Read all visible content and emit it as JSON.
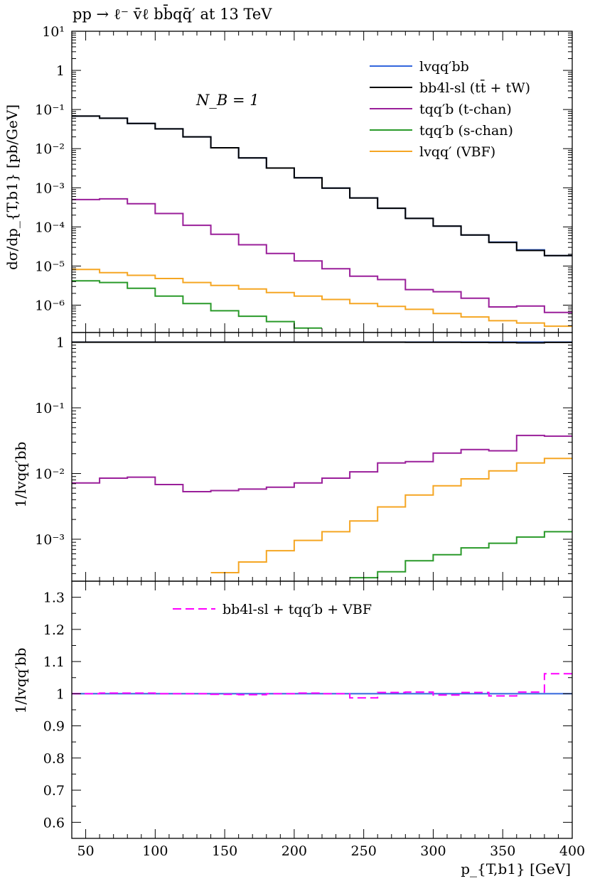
{
  "chart_data": [
    {
      "type": "line",
      "title": "pp → ℓ⁻ v̄ℓ bb̄qq̄′ at 13 TeV",
      "ylabel": "dσ/dp_{T,b1} [pb/GeV]",
      "yscale": "log",
      "ylim": [
        2e-07,
        10
      ],
      "xlim": [
        40,
        400
      ],
      "ytick_labels": [
        "10¹",
        "1",
        "10⁻¹",
        "10⁻²",
        "10⁻³",
        "10⁻⁴",
        "10⁻⁵",
        "10⁻⁶"
      ],
      "annotation": "N_B = 1",
      "legend_position": "top-right",
      "x_edges": [
        40,
        60,
        80,
        100,
        120,
        140,
        160,
        180,
        200,
        220,
        240,
        260,
        280,
        300,
        320,
        340,
        360,
        380,
        400
      ],
      "series": [
        {
          "name": "lvqq′bb",
          "color": "#3366dd",
          "values": [
            0.068,
            0.06,
            0.044,
            0.032,
            0.02,
            0.0105,
            0.0058,
            0.0032,
            0.0018,
            0.00098,
            0.00055,
            0.0003,
            0.000165,
            0.000105,
            6.2e-05,
            4.1e-05,
            2.6e-05,
            1.85e-05
          ]
        },
        {
          "name": "bb4l-sl (tt̄ + tW)",
          "color": "#000000",
          "values": [
            0.068,
            0.06,
            0.044,
            0.032,
            0.02,
            0.0105,
            0.0058,
            0.0032,
            0.0018,
            0.00098,
            0.00055,
            0.0003,
            0.000165,
            0.000105,
            6.2e-05,
            4e-05,
            2.5e-05,
            1.85e-05
          ]
        },
        {
          "name": "tqq′b (t-chan)",
          "color": "#9a1f9a",
          "values": [
            0.0005,
            0.00052,
            0.00039,
            0.00022,
            0.00011,
            6.5e-05,
            3.5e-05,
            2.1e-05,
            1.35e-05,
            8.5e-06,
            5.5e-06,
            4.5e-06,
            2.5e-06,
            2.2e-06,
            1.5e-06,
            9e-07,
            9.5e-07,
            6.5e-07
          ]
        },
        {
          "name": "tqq′b (s-chan)",
          "color": "#2a9a2a",
          "values": [
            4.2e-06,
            3.8e-06,
            2.7e-06,
            1.7e-06,
            1.1e-06,
            7.2e-07,
            5.2e-07,
            3.8e-07,
            2.6e-07,
            null,
            null,
            null,
            null,
            null,
            null,
            null,
            null,
            null
          ]
        },
        {
          "name": "lvqq′ (VBF)",
          "color": "#f5a623",
          "values": [
            8.2e-06,
            6.8e-06,
            5.8e-06,
            4.8e-06,
            3.8e-06,
            3.2e-06,
            2.6e-06,
            2.1e-06,
            1.7e-06,
            1.4e-06,
            1.1e-06,
            9.3e-07,
            7.8e-07,
            6.1e-07,
            5e-07,
            4e-07,
            3.5e-07,
            2.9e-07
          ]
        }
      ]
    },
    {
      "type": "line",
      "ylabel": "1/lvqq′bb",
      "yscale": "log",
      "ylim": [
        0.00023,
        1.4
      ],
      "xlim": [
        40,
        400
      ],
      "ytick_labels": [
        "1",
        "10⁻¹",
        "10⁻²",
        "10⁻³"
      ],
      "x_edges": [
        40,
        60,
        80,
        100,
        120,
        140,
        160,
        180,
        200,
        220,
        240,
        260,
        280,
        300,
        320,
        340,
        360,
        380,
        400
      ],
      "series": [
        {
          "name": "lvqq′bb",
          "color": "#3366dd",
          "values": [
            1,
            1,
            1,
            1,
            1,
            1,
            1,
            1,
            1,
            1,
            1,
            1,
            1,
            1,
            1,
            1,
            1,
            1
          ]
        },
        {
          "name": "bb4l-sl (tt̄ + tW)",
          "color": "#000000",
          "values": [
            0.998,
            0.999,
            0.998,
            0.999,
            0.998,
            0.999,
            0.998,
            0.999,
            0.998,
            0.998,
            0.999,
            0.997,
            0.995,
            0.993,
            0.99,
            0.985,
            0.975,
            0.99
          ]
        },
        {
          "name": "tqq′b (t-chan)",
          "color": "#9a1f9a",
          "values": [
            0.0072,
            0.0085,
            0.0088,
            0.0068,
            0.0053,
            0.0055,
            0.0058,
            0.0062,
            0.0072,
            0.0085,
            0.0106,
            0.0145,
            0.0152,
            0.0205,
            0.0232,
            0.0222,
            0.038,
            0.037
          ]
        },
        {
          "name": "tqq′b (s-chan)",
          "color": "#2a9a2a",
          "values": [
            null,
            null,
            null,
            null,
            null,
            null,
            null,
            null,
            null,
            null,
            0.00026,
            0.00032,
            0.00047,
            0.00058,
            0.00074,
            0.00087,
            0.00108,
            0.0013
          ]
        },
        {
          "name": "lvqq′ (VBF)",
          "color": "#f5a623",
          "values": [
            null,
            null,
            null,
            null,
            null,
            0.00031,
            0.00045,
            0.00067,
            0.00096,
            0.0013,
            0.0019,
            0.0031,
            0.0047,
            0.0065,
            0.0083,
            0.011,
            0.0145,
            0.017
          ]
        }
      ]
    },
    {
      "type": "line",
      "ylabel": "1/lvqq′bb",
      "xlabel": "p_{T,b1} [GeV]",
      "ylim": [
        0.55,
        1.35
      ],
      "xlim": [
        40,
        400
      ],
      "ytick_labels": [
        "1.3",
        "1.2",
        "1.1",
        "1",
        "0.9",
        "0.8",
        "0.7",
        "0.6"
      ],
      "xtick_labels": [
        "50",
        "100",
        "150",
        "200",
        "250",
        "300",
        "350",
        "400"
      ],
      "x_edges": [
        40,
        60,
        80,
        100,
        120,
        140,
        160,
        180,
        200,
        220,
        240,
        260,
        280,
        300,
        320,
        340,
        360,
        380,
        400
      ],
      "series": [
        {
          "name": "lvqq′bb",
          "color": "#3366dd",
          "values": [
            1,
            1,
            1,
            1,
            1,
            1,
            1,
            1,
            1,
            1,
            1,
            1,
            1,
            1,
            1,
            1,
            1,
            1
          ]
        },
        {
          "name": "bb4l-sl + tqq′b + VBF",
          "color": "#ff00ff",
          "dashed": true,
          "values": [
            1.0,
            1.002,
            1.002,
            1.0,
            1.0,
            0.998,
            0.997,
            1.0,
            1.002,
            1.0,
            0.987,
            1.004,
            1.005,
            0.996,
            1.004,
            0.993,
            1.005,
            1.062
          ]
        }
      ]
    }
  ]
}
